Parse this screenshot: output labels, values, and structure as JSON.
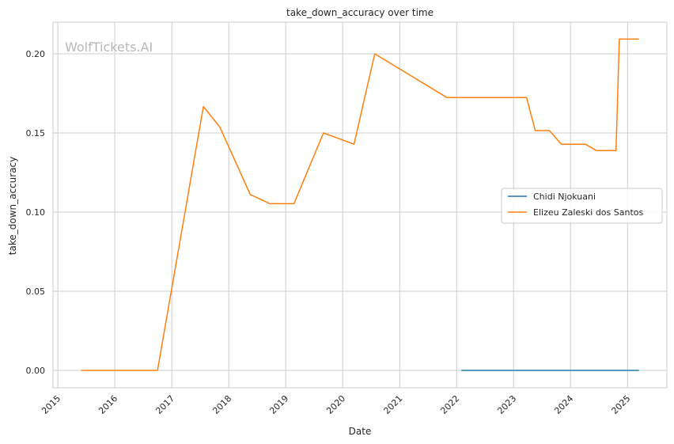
{
  "chart_data": {
    "type": "line",
    "title": "take_down_accuracy over time",
    "xlabel": "Date",
    "ylabel": "take_down_accuracy",
    "watermark": "WolfTickets.AI",
    "x_ticks": [
      "2015",
      "2016",
      "2017",
      "2018",
      "2019",
      "2020",
      "2021",
      "2022",
      "2023",
      "2024",
      "2025"
    ],
    "y_ticks": [
      "0.00",
      "0.05",
      "0.10",
      "0.15",
      "0.20"
    ],
    "xlim": [
      "2014-12-01",
      "2025-09-10"
    ],
    "ylim": [
      -0.011,
      0.22
    ],
    "grid": true,
    "legend_position": "center-right",
    "series": [
      {
        "name": "Chidi Njokuani",
        "color": "#1f77b4",
        "x": [
          "2022-02-01",
          "2025-03-15"
        ],
        "y": [
          0.0,
          0.0
        ]
      },
      {
        "name": "Elizeu Zaleski dos Santos",
        "color": "#ff7f0e",
        "x": [
          "2015-05-30",
          "2016-10-01",
          "2017-07-22",
          "2017-11-04",
          "2018-05-19",
          "2018-09-22",
          "2019-02-23",
          "2019-08-31",
          "2020-03-14",
          "2020-07-25",
          "2021-10-30",
          "2023-03-25",
          "2023-05-20",
          "2023-08-19",
          "2023-11-04",
          "2024-04-06",
          "2024-06-15",
          "2024-10-19",
          "2024-11-09",
          "2025-03-15"
        ],
        "y": [
          0.0,
          0.0,
          0.1667,
          0.1538,
          0.1111,
          0.1053,
          0.1053,
          0.15,
          0.1429,
          0.2,
          0.1724,
          0.1724,
          0.1515,
          0.1515,
          0.1429,
          0.1429,
          0.1389,
          0.1389,
          0.2093,
          0.2093
        ]
      }
    ]
  }
}
